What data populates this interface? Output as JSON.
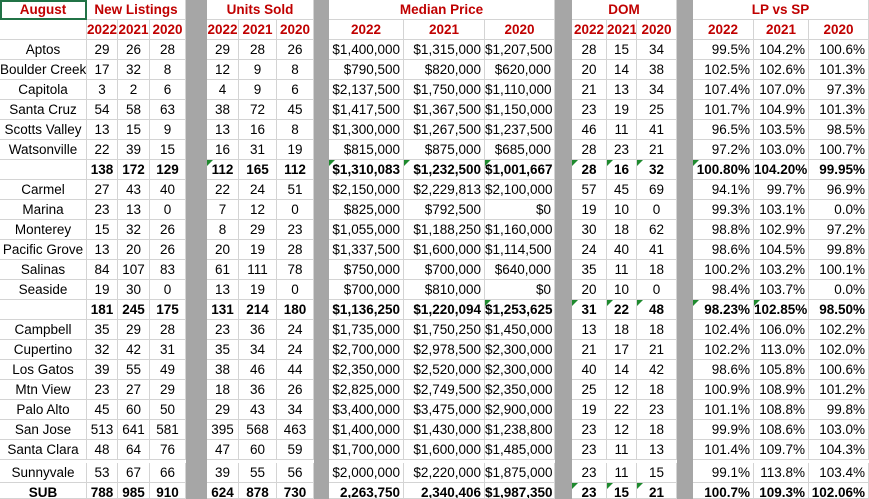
{
  "header": {
    "month": "August",
    "groups": [
      "New Listings",
      "Units Sold",
      "Median Price",
      "DOM",
      "LP vs SP"
    ]
  },
  "years": [
    "2022",
    "2021",
    "2020"
  ],
  "rows": [
    {
      "name": "Aptos",
      "nl": [
        "29",
        "26",
        "28"
      ],
      "us": [
        "29",
        "28",
        "26"
      ],
      "mp": [
        "$1,400,000",
        "$1,315,000",
        "$1,207,500"
      ],
      "dom": [
        "28",
        "15",
        "34"
      ],
      "lp": [
        "99.5%",
        "104.2%",
        "100.6%"
      ]
    },
    {
      "name": "Boulder Creek",
      "nl": [
        "17",
        "32",
        "8"
      ],
      "us": [
        "12",
        "9",
        "8"
      ],
      "mp": [
        "$790,500",
        "$820,000",
        "$620,000"
      ],
      "dom": [
        "20",
        "14",
        "38"
      ],
      "lp": [
        "102.5%",
        "102.6%",
        "101.3%"
      ]
    },
    {
      "name": "Capitola",
      "nl": [
        "3",
        "2",
        "6"
      ],
      "us": [
        "4",
        "9",
        "6"
      ],
      "mp": [
        "$2,137,500",
        "$1,750,000",
        "$1,110,000"
      ],
      "dom": [
        "21",
        "13",
        "34"
      ],
      "lp": [
        "107.4%",
        "107.0%",
        "97.3%"
      ]
    },
    {
      "name": "Santa Cruz",
      "nl": [
        "54",
        "58",
        "63"
      ],
      "us": [
        "38",
        "72",
        "45"
      ],
      "mp": [
        "$1,417,500",
        "$1,367,500",
        "$1,150,000"
      ],
      "dom": [
        "23",
        "19",
        "25"
      ],
      "lp": [
        "101.7%",
        "104.9%",
        "101.3%"
      ]
    },
    {
      "name": "Scotts Valley",
      "nl": [
        "13",
        "15",
        "9"
      ],
      "us": [
        "13",
        "16",
        "8"
      ],
      "mp": [
        "$1,300,000",
        "$1,267,500",
        "$1,237,500"
      ],
      "dom": [
        "46",
        "11",
        "41"
      ],
      "lp": [
        "96.5%",
        "103.5%",
        "98.5%"
      ]
    },
    {
      "name": "Watsonville",
      "nl": [
        "22",
        "39",
        "15"
      ],
      "us": [
        "16",
        "31",
        "19"
      ],
      "mp": [
        "$815,000",
        "$875,000",
        "$685,000"
      ],
      "dom": [
        "28",
        "23",
        "21"
      ],
      "lp": [
        "97.2%",
        "103.0%",
        "100.7%"
      ]
    },
    {
      "name": "",
      "bold": true,
      "nl": [
        "138",
        "172",
        "129"
      ],
      "us": [
        "112",
        "165",
        "112"
      ],
      "mp": [
        "$1,310,083",
        "$1,232,500",
        "$1,001,667"
      ],
      "dom": [
        "28",
        "16",
        "32"
      ],
      "lp": [
        "100.80%",
        "104.20%",
        "99.95%"
      ]
    },
    {
      "name": "Carmel",
      "nl": [
        "27",
        "43",
        "40"
      ],
      "us": [
        "22",
        "24",
        "51"
      ],
      "mp": [
        "$2,150,000",
        "$2,229,813",
        "$2,100,000"
      ],
      "dom": [
        "57",
        "45",
        "69"
      ],
      "lp": [
        "94.1%",
        "99.7%",
        "96.9%"
      ]
    },
    {
      "name": "Marina",
      "nl": [
        "23",
        "13",
        "0"
      ],
      "us": [
        "7",
        "12",
        "0"
      ],
      "mp": [
        "$825,000",
        "$792,500",
        "$0"
      ],
      "dom": [
        "19",
        "10",
        "0"
      ],
      "lp": [
        "99.3%",
        "103.1%",
        "0.0%"
      ]
    },
    {
      "name": "Monterey",
      "nl": [
        "15",
        "32",
        "26"
      ],
      "us": [
        "8",
        "29",
        "23"
      ],
      "mp": [
        "$1,055,000",
        "$1,188,250",
        "$1,160,000"
      ],
      "dom": [
        "30",
        "18",
        "62"
      ],
      "lp": [
        "98.8%",
        "102.9%",
        "97.2%"
      ]
    },
    {
      "name": "Pacific Grove",
      "nl": [
        "13",
        "20",
        "26"
      ],
      "us": [
        "20",
        "19",
        "28"
      ],
      "mp": [
        "$1,337,500",
        "$1,600,000",
        "$1,114,500"
      ],
      "dom": [
        "24",
        "40",
        "41"
      ],
      "lp": [
        "98.6%",
        "104.5%",
        "99.8%"
      ]
    },
    {
      "name": "Salinas",
      "nl": [
        "84",
        "107",
        "83"
      ],
      "us": [
        "61",
        "111",
        "78"
      ],
      "mp": [
        "$750,000",
        "$700,000",
        "$640,000"
      ],
      "dom": [
        "35",
        "11",
        "18"
      ],
      "lp": [
        "100.2%",
        "103.2%",
        "100.1%"
      ]
    },
    {
      "name": "Seaside",
      "nl": [
        "19",
        "30",
        "0"
      ],
      "us": [
        "13",
        "19",
        "0"
      ],
      "mp": [
        "$700,000",
        "$810,000",
        "$0"
      ],
      "dom": [
        "20",
        "10",
        "0"
      ],
      "lp": [
        "98.4%",
        "103.7%",
        "0.0%"
      ]
    },
    {
      "name": "",
      "bold": true,
      "nl": [
        "181",
        "245",
        "175"
      ],
      "us": [
        "131",
        "214",
        "180"
      ],
      "mp": [
        "$1,136,250",
        "$1,220,094",
        "$1,253,625"
      ],
      "dom": [
        "31",
        "22",
        "48"
      ],
      "lp": [
        "98.23%",
        "102.85%",
        "98.50%"
      ]
    },
    {
      "name": "Campbell",
      "nl": [
        "35",
        "29",
        "28"
      ],
      "us": [
        "23",
        "36",
        "24"
      ],
      "mp": [
        "$1,735,000",
        "$1,750,250",
        "$1,450,000"
      ],
      "dom": [
        "13",
        "18",
        "18"
      ],
      "lp": [
        "102.4%",
        "106.0%",
        "102.2%"
      ]
    },
    {
      "name": "Cupertino",
      "nl": [
        "32",
        "42",
        "31"
      ],
      "us": [
        "35",
        "34",
        "24"
      ],
      "mp": [
        "$2,700,000",
        "$2,978,500",
        "$2,300,000"
      ],
      "dom": [
        "21",
        "17",
        "21"
      ],
      "lp": [
        "102.2%",
        "113.0%",
        "102.0%"
      ]
    },
    {
      "name": "Los Gatos",
      "nl": [
        "39",
        "55",
        "49"
      ],
      "us": [
        "38",
        "46",
        "44"
      ],
      "mp": [
        "$2,350,000",
        "$2,520,000",
        "$2,300,000"
      ],
      "dom": [
        "40",
        "14",
        "42"
      ],
      "lp": [
        "98.6%",
        "105.8%",
        "100.6%"
      ]
    },
    {
      "name": "Mtn View",
      "nl": [
        "23",
        "27",
        "29"
      ],
      "us": [
        "18",
        "36",
        "26"
      ],
      "mp": [
        "$2,825,000",
        "$2,749,500",
        "$2,350,000"
      ],
      "dom": [
        "25",
        "12",
        "18"
      ],
      "lp": [
        "100.9%",
        "108.9%",
        "101.2%"
      ]
    },
    {
      "name": "Palo Alto",
      "nl": [
        "45",
        "60",
        "50"
      ],
      "us": [
        "29",
        "43",
        "34"
      ],
      "mp": [
        "$3,400,000",
        "$3,475,000",
        "$2,900,000"
      ],
      "dom": [
        "19",
        "22",
        "23"
      ],
      "lp": [
        "101.1%",
        "108.8%",
        "99.8%"
      ]
    },
    {
      "name": "San Jose",
      "nl": [
        "513",
        "641",
        "581"
      ],
      "us": [
        "395",
        "568",
        "463"
      ],
      "mp": [
        "$1,400,000",
        "$1,430,000",
        "$1,238,800"
      ],
      "dom": [
        "23",
        "12",
        "18"
      ],
      "lp": [
        "99.9%",
        "108.6%",
        "103.0%"
      ]
    },
    {
      "name": "Santa Clara",
      "nl": [
        "48",
        "64",
        "76"
      ],
      "us": [
        "47",
        "60",
        "59"
      ],
      "mp": [
        "$1,700,000",
        "$1,600,000",
        "$1,485,000"
      ],
      "dom": [
        "23",
        "11",
        "13"
      ],
      "lp": [
        "101.4%",
        "109.7%",
        "104.3%"
      ]
    },
    {
      "name": "Sunnyvale",
      "nl": [
        "53",
        "67",
        "66"
      ],
      "us": [
        "39",
        "55",
        "56"
      ],
      "mp": [
        "$2,000,000",
        "$2,220,000",
        "$1,875,000"
      ],
      "dom": [
        "23",
        "11",
        "15"
      ],
      "lp": [
        "99.1%",
        "113.8%",
        "103.4%"
      ]
    },
    {
      "name": "SUB",
      "bold": true,
      "nl": [
        "788",
        "985",
        "910"
      ],
      "us": [
        "624",
        "878",
        "730"
      ],
      "mp": [
        "2,263,750",
        "2,340,406",
        "$1,987,350"
      ],
      "dom": [
        "23",
        "15",
        "21"
      ],
      "lp": [
        "100.7%",
        "109.3%",
        "102.06%"
      ]
    }
  ],
  "colors": {
    "header_red": "#c00000",
    "gap_gray": "#a6a6a6",
    "marker_green": "#1e8a2e",
    "selection": "#217346"
  }
}
